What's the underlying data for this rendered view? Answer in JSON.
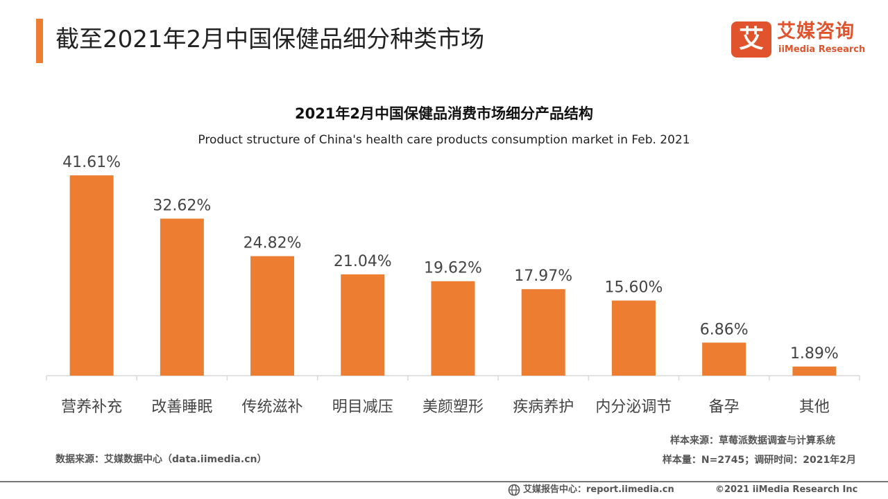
{
  "header": {
    "title": "截至2021年2月中国保健品细分种类市场",
    "brand_cn": "艾媒咨询",
    "brand_en": "iiMedia Research",
    "brand_mark": "艾"
  },
  "chart_data": {
    "type": "bar",
    "title": "2021年2月中国保健品消费市场细分产品结构",
    "subtitle": "Product structure of China's health care products consumption market in Feb. 2021",
    "categories": [
      "营养补充",
      "改善睡眠",
      "传统滋补",
      "明目减压",
      "美颜塑形",
      "疾病养护",
      "内分泌调节",
      "备孕",
      "其他"
    ],
    "values": [
      41.61,
      32.62,
      24.82,
      21.04,
      19.62,
      17.97,
      15.6,
      6.86,
      1.89
    ],
    "value_labels": [
      "41.61%",
      "32.62%",
      "24.82%",
      "21.04%",
      "19.62%",
      "17.97%",
      "15.60%",
      "6.86%",
      "1.89%"
    ],
    "unit": "%",
    "ylim": [
      0,
      41.61
    ],
    "grid": false,
    "legend": "none",
    "bar_color": "#ed7d31"
  },
  "notes": {
    "data_source": "数据来源：艾媒数据中心（data.iimedia.cn）",
    "sample_source": "样本来源：草莓派数据调查与计算系统",
    "sample_size": "样本量：N=2745；调研时间：2021年2月"
  },
  "footer": {
    "report_center": "艾媒报告中心：report.iimedia.cn",
    "copyright": "©2021  iiMedia Research  Inc"
  },
  "colors": {
    "accent": "#ed7d31",
    "brand": "#e0532c",
    "axis": "#d9d9d9"
  }
}
